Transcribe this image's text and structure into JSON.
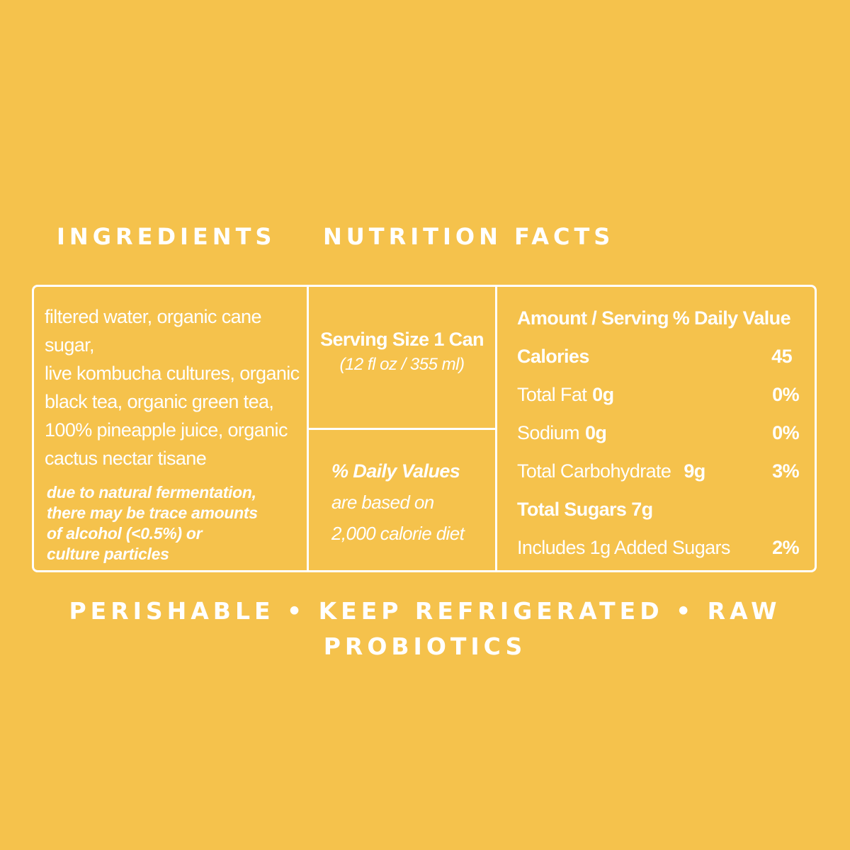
{
  "headings": {
    "ingredients": "INGREDIENTS",
    "nutrition": "NUTRITION FACTS"
  },
  "ingredients": {
    "lines": [
      "filtered water, organic cane sugar,",
      "live kombucha cultures, organic",
      "black tea, organic green tea,",
      "100% pineapple juice, organic",
      "cactus nectar tisane"
    ],
    "note_lines": [
      "due to natural fermentation,",
      "there may be trace amounts",
      "of alcohol (<0.5%) or",
      "culture particles"
    ]
  },
  "serving": {
    "size": "Serving Size 1 Can",
    "amount": "(12 fl oz / 355 ml)"
  },
  "daily_values_note": {
    "title": "% Daily Values",
    "line1": "are based on",
    "line2": "2,000 calorie diet"
  },
  "facts": {
    "header_amount": "Amount / Serving",
    "header_dv": "% Daily Value",
    "calories_label": "Calories",
    "calories_value": "45",
    "fat_label": "Total Fat",
    "fat_amount": "0g",
    "fat_dv": "0%",
    "sodium_label": "Sodium",
    "sodium_amount": "0g",
    "sodium_dv": "0%",
    "carb_label": "Total Carbohydrate",
    "carb_amount": "9g",
    "carb_dv": "3%",
    "sugars_label": "Total Sugars 7g",
    "added_sugars_label": "Includes 1g Added Sugars",
    "added_sugars_dv": "2%"
  },
  "footer": "PERISHABLE • KEEP REFRIGERATED • RAW PROBIOTICS",
  "colors": {
    "background": "#F5C24C",
    "foreground": "#FFFFFF"
  }
}
